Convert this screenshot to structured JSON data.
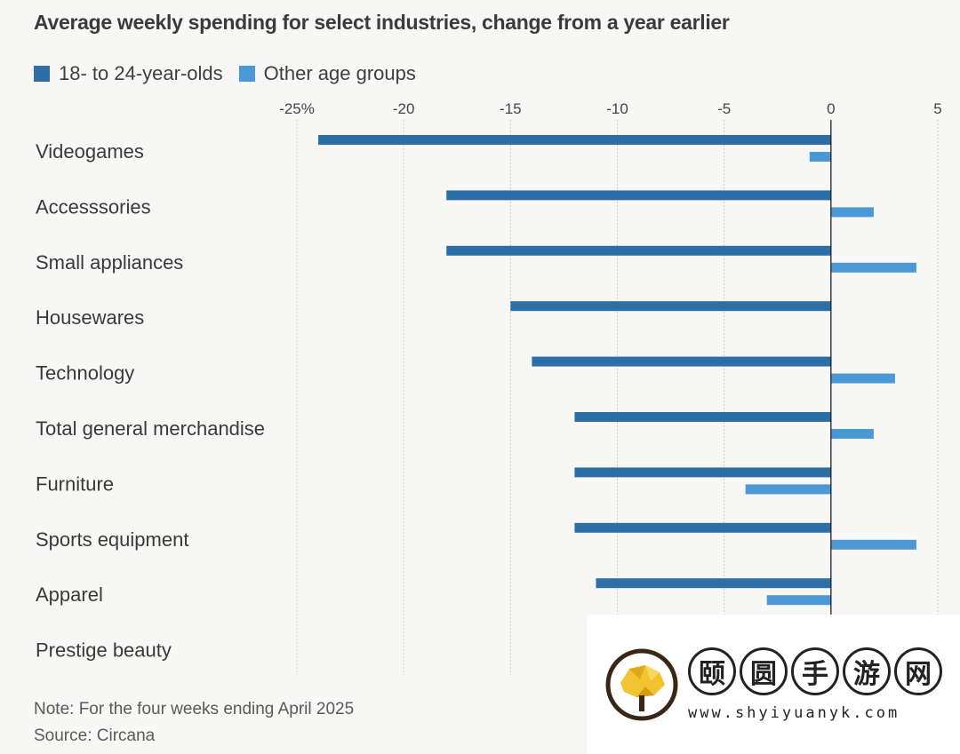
{
  "chart_data": {
    "type": "bar",
    "orientation": "horizontal",
    "title": "Average weekly spending for select industries, change from a year earlier",
    "categories": [
      "Videogames",
      "Accesssories",
      "Small appliances",
      "Housewares",
      "Technology",
      "Total general merchandise",
      "Furniture",
      "Sports equipment",
      "Apparel",
      "Prestige beauty"
    ],
    "series": [
      {
        "name": "18- to 24-year-olds",
        "color": "#2e6ea6",
        "values": [
          -24,
          -18,
          -18,
          -15,
          -14,
          -12,
          -12,
          -12,
          -11,
          null
        ]
      },
      {
        "name": "Other age groups",
        "color": "#4a98d6",
        "values": [
          -1,
          2,
          4,
          null,
          3,
          2,
          -4,
          4,
          -3,
          null
        ]
      }
    ],
    "x_ticks": [
      -25,
      -20,
      -15,
      -10,
      -5,
      0,
      5
    ],
    "x_tick_labels": [
      "-25%",
      "-20",
      "-15",
      "-10",
      "-5",
      "0",
      "5"
    ],
    "xlim": [
      -25,
      5
    ],
    "legend_position": "top-left",
    "grid": true
  },
  "footer": {
    "note": "Note: For the four weeks ending April 2025",
    "source": "Source: Circana"
  },
  "watermark": {
    "chars": [
      "颐",
      "圆",
      "手",
      "游",
      "网"
    ],
    "url": "www.shyiyuanyk.com"
  }
}
